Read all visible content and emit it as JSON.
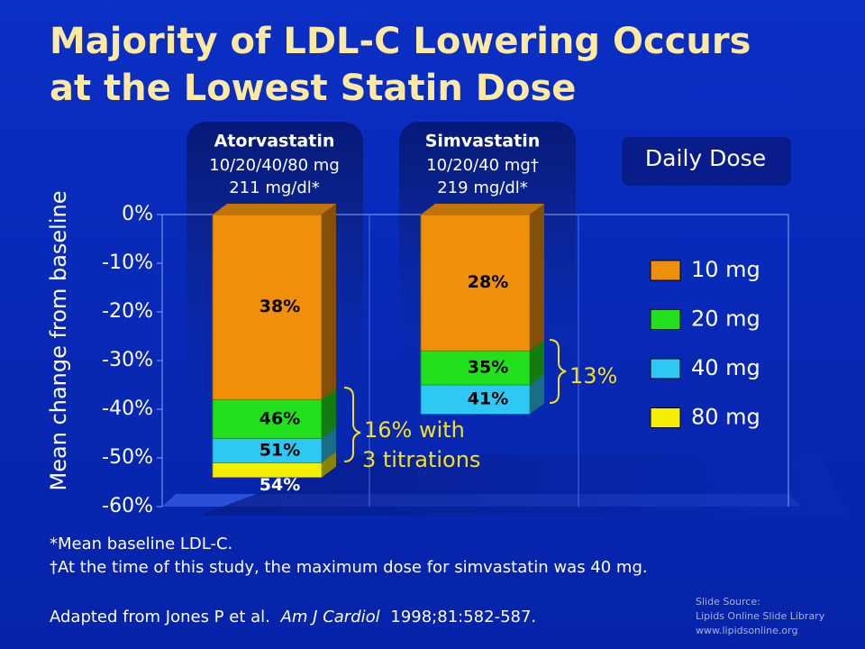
{
  "title_lines": [
    "Majority of LDL-C Lowering Occurs",
    "at the Lowest Statin Dose"
  ],
  "chart_data": {
    "type": "bar",
    "ylabel": "Mean change from baseline",
    "categories": [
      "Atorvastatin",
      "Simvastatin"
    ],
    "category_notes": [
      [
        "10/20/40/80 mg",
        "211 mg/dl*"
      ],
      [
        "10/20/40 mg†",
        "219 mg/dl*"
      ]
    ],
    "legend_title": "Daily Dose",
    "series": [
      {
        "name": "10 mg",
        "color": "#f0900a",
        "values": [
          -38,
          -28
        ],
        "value_labels": [
          "38%",
          "28%"
        ]
      },
      {
        "name": "20 mg",
        "color": "#22e01c",
        "values": [
          -46,
          -35
        ],
        "value_labels": [
          "46%",
          "35%"
        ]
      },
      {
        "name": "40 mg",
        "color": "#2ec8f4",
        "values": [
          -51,
          -41
        ],
        "value_labels": [
          "51%",
          "41%"
        ]
      },
      {
        "name": "80 mg",
        "color": "#f4f000",
        "values": [
          -54,
          null
        ],
        "value_labels": [
          "54%",
          null
        ]
      }
    ],
    "ylim": [
      -60,
      0
    ],
    "yticks": [
      {
        "value": 0,
        "label": "0%"
      },
      {
        "value": -10,
        "label": "-10%"
      },
      {
        "value": -20,
        "label": "-20%"
      },
      {
        "value": -30,
        "label": "-30%"
      },
      {
        "value": -40,
        "label": "-40%"
      },
      {
        "value": -50,
        "label": "-50%"
      },
      {
        "value": -60,
        "label": "-60%"
      }
    ],
    "annotations": [
      {
        "lines": [
          "16% with",
          "3 titrations"
        ]
      },
      {
        "lines": [
          "13%"
        ]
      }
    ]
  },
  "footnotes": [
    "*Mean baseline LDL-C.",
    "†At the time of this study, the maximum dose for simvastatin was 40 mg."
  ],
  "citation": {
    "prefix": "Adapted from Jones P et al.",
    "journal": "Am J Cardiol",
    "details": "1998;81:582-587."
  },
  "source": [
    "Slide Source:",
    "Lipids Online Slide Library",
    "www.lipidsonline.org"
  ]
}
